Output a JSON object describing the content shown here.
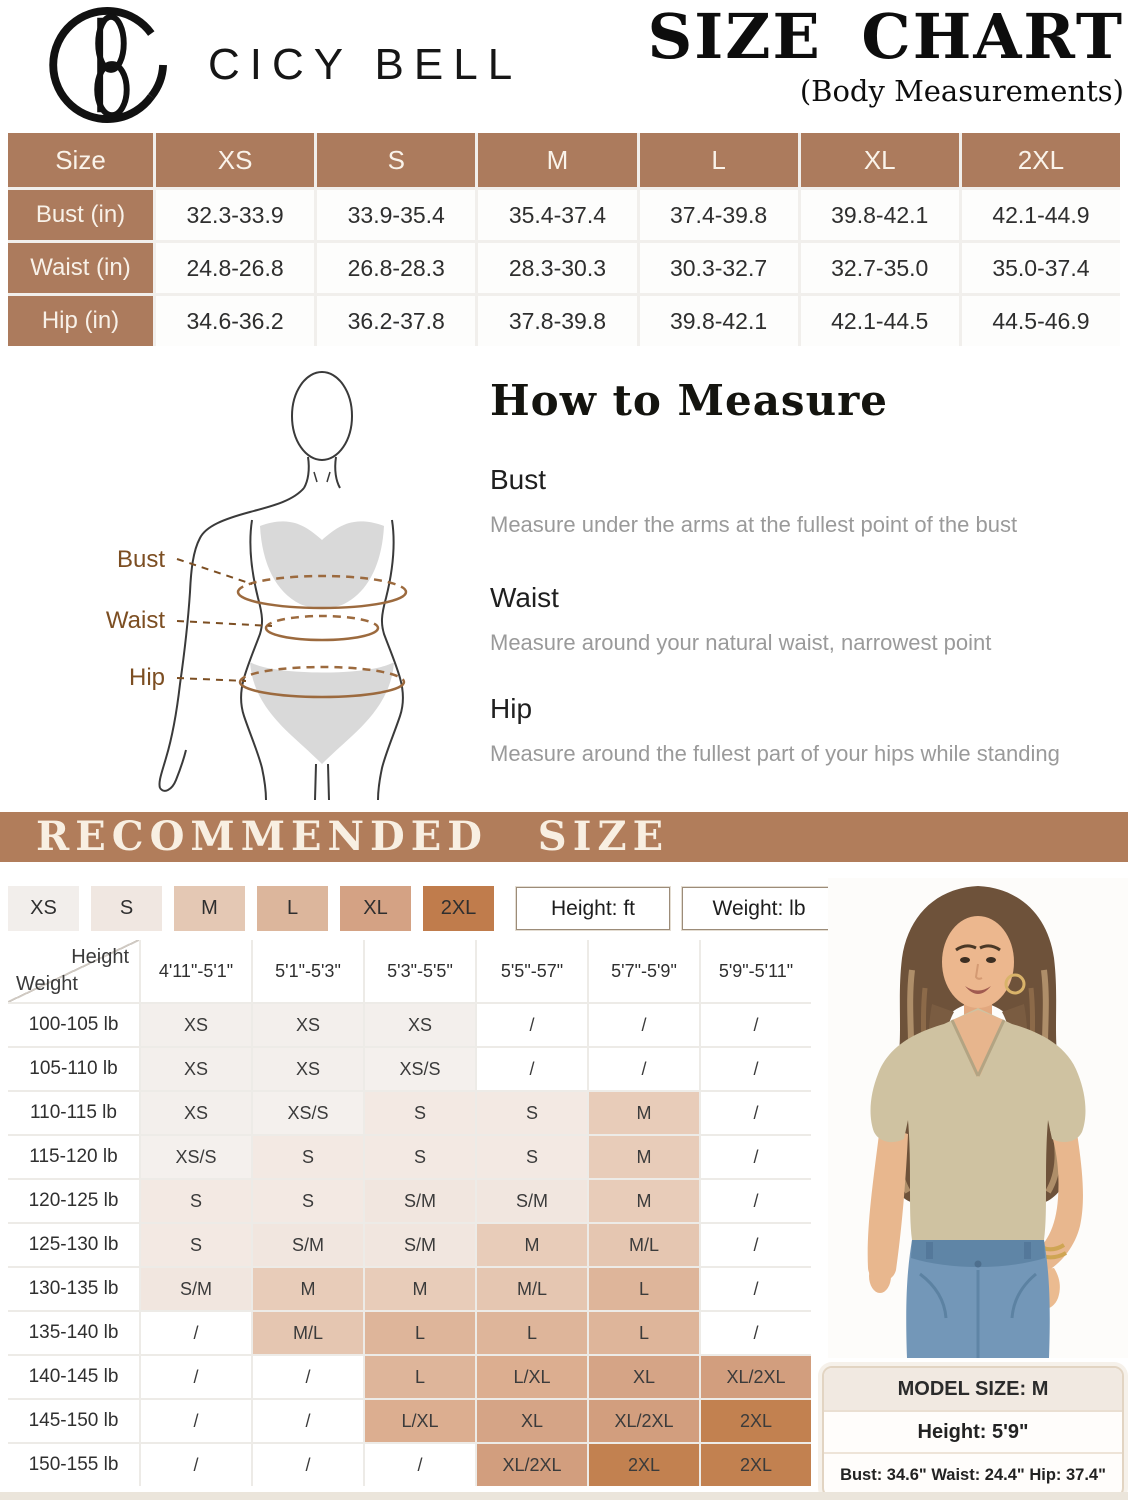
{
  "header": {
    "brand": "CICY BELL",
    "title": "SIZE CHART",
    "subtitle": "(Body Measurements)"
  },
  "size_table": {
    "columns": [
      "Size",
      "XS",
      "S",
      "M",
      "L",
      "XL",
      "2XL"
    ],
    "rows": [
      {
        "label": "Bust (in)",
        "values": [
          "32.3-33.9",
          "33.9-35.4",
          "35.4-37.4",
          "37.4-39.8",
          "39.8-42.1",
          "42.1-44.9"
        ]
      },
      {
        "label": "Waist (in)",
        "values": [
          "24.8-26.8",
          "26.8-28.3",
          "28.3-30.3",
          "30.3-32.7",
          "32.7-35.0",
          "35.0-37.4"
        ]
      },
      {
        "label": "Hip (in)",
        "values": [
          "34.6-36.2",
          "36.2-37.8",
          "37.8-39.8",
          "39.8-42.1",
          "42.1-44.5",
          "44.5-46.9"
        ]
      }
    ]
  },
  "how_to_measure": {
    "title": "How to Measure",
    "diagram_labels": [
      "Bust",
      "Waist",
      "Hip"
    ],
    "sections": [
      {
        "name": "Bust",
        "description": "Measure under the arms at the fullest point of the bust"
      },
      {
        "name": "Waist",
        "description": "Measure around your natural waist, narrowest point"
      },
      {
        "name": "Hip",
        "description": "Measure around the fullest part of your hips while standing"
      }
    ]
  },
  "recommended": {
    "banner": "RECOMMENDED SIZE",
    "legend": [
      {
        "label": "XS",
        "color": "#f2eeeb"
      },
      {
        "label": "S",
        "color": "#f0e7e1"
      },
      {
        "label": "M",
        "color": "#e4c8b4"
      },
      {
        "label": "L",
        "color": "#dcb69c"
      },
      {
        "label": "XL",
        "color": "#d4a284"
      },
      {
        "label": "2XL",
        "color": "#c07c4c"
      }
    ],
    "unit_boxes": [
      "Height: ft",
      "Weight: lb"
    ],
    "cell_colors": {
      "XS": "#f3efec",
      "XS/S": "#f4f0ed",
      "S": "#f3e9e3",
      "S/M": "#f1e6df",
      "M": "#e8ccb9",
      "M/L": "#e5c6b1",
      "L": "#deb59a",
      "L/XL": "#dcae90",
      "XL": "#d5a486",
      "XL/2XL": "#d29e7e",
      "2XL": "#c28150",
      "/": "#ffffff"
    },
    "table": {
      "corner": {
        "top": "Height",
        "bottom": "Weight"
      },
      "height_columns": [
        "4'11\"-5'1\"",
        "5'1\"-5'3\"",
        "5'3\"-5'5\"",
        "5'5\"-57\"",
        "5'7\"-5'9\"",
        "5'9\"-5'11\""
      ],
      "rows": [
        {
          "weight": "100-105 lb",
          "cells": [
            "XS",
            "XS",
            "XS",
            "/",
            "/",
            "/"
          ]
        },
        {
          "weight": "105-110 lb",
          "cells": [
            "XS",
            "XS",
            "XS/S",
            "/",
            "/",
            "/"
          ]
        },
        {
          "weight": "110-115 lb",
          "cells": [
            "XS",
            "XS/S",
            "S",
            "S",
            "M",
            "/"
          ]
        },
        {
          "weight": "115-120 lb",
          "cells": [
            "XS/S",
            "S",
            "S",
            "S",
            "M",
            "/"
          ]
        },
        {
          "weight": "120-125 lb",
          "cells": [
            "S",
            "S",
            "S/M",
            "S/M",
            "M",
            "/"
          ]
        },
        {
          "weight": "125-130 lb",
          "cells": [
            "S",
            "S/M",
            "S/M",
            "M",
            "M/L",
            "/"
          ]
        },
        {
          "weight": "130-135 lb",
          "cells": [
            "S/M",
            "M",
            "M",
            "M/L",
            "L",
            "/"
          ]
        },
        {
          "weight": "135-140 lb",
          "cells": [
            "/",
            "M/L",
            "L",
            "L",
            "L",
            "/"
          ]
        },
        {
          "weight": "140-145 lb",
          "cells": [
            "/",
            "/",
            "L",
            "L/XL",
            "XL",
            "XL/2XL"
          ]
        },
        {
          "weight": "145-150 lb",
          "cells": [
            "/",
            "/",
            "L/XL",
            "XL",
            "XL/2XL",
            "2XL"
          ]
        },
        {
          "weight": "150-155 lb",
          "cells": [
            "/",
            "/",
            "/",
            "XL/2XL",
            "2XL",
            "2XL"
          ]
        }
      ]
    }
  },
  "model": {
    "size_label": "MODEL SIZE: M",
    "height": "Height: 5'9\"",
    "measurements": "Bust: 34.6\" Waist: 24.4\" Hip: 37.4\""
  },
  "colors": {
    "table_header_brown": "#ac7b5d",
    "banner_brown": "#b17d5b",
    "cream_text": "#f8efe2",
    "diagram_label_brown": "#7c4e22"
  }
}
